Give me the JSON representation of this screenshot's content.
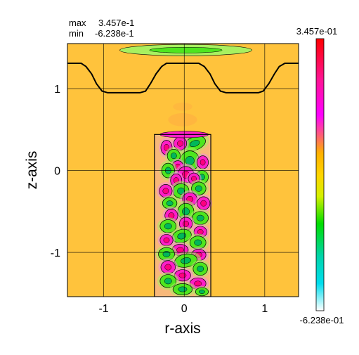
{
  "stats": {
    "max_label": "max",
    "max_value": "3.457e-1",
    "min_label": "min",
    "min_value": "-6.238e-1"
  },
  "colorbar": {
    "top_label": "3.457e-01",
    "bottom_label": "-6.238e-01",
    "stops": [
      {
        "offset": 0.0,
        "color": "#ff0000"
      },
      {
        "offset": 0.15,
        "color": "#ff1493"
      },
      {
        "offset": 0.28,
        "color": "#ff00ff"
      },
      {
        "offset": 0.42,
        "color": "#ffb000"
      },
      {
        "offset": 0.5,
        "color": "#ffd400"
      },
      {
        "offset": 0.58,
        "color": "#d4f000"
      },
      {
        "offset": 0.68,
        "color": "#00dd00"
      },
      {
        "offset": 0.8,
        "color": "#00d4aa"
      },
      {
        "offset": 0.9,
        "color": "#00ddee"
      },
      {
        "offset": 1.0,
        "color": "#ffffff"
      }
    ]
  },
  "colors": {
    "background_field": "#ffc33c",
    "hot": "#ff1ec8",
    "cold": "#4ee61e",
    "light_green": "#a8f060",
    "soft_orange": "#ffb040"
  },
  "chart_data": {
    "type": "heatmap",
    "title": "",
    "xlabel": "r-axis",
    "ylabel": "z-axis",
    "xlim": [
      -1.45,
      1.42
    ],
    "ylim": [
      -1.54,
      1.55
    ],
    "xticks": [
      -1,
      0,
      1
    ],
    "yticks": [
      -1,
      0,
      1
    ],
    "grid": true,
    "value_range": {
      "max": 0.3457,
      "min": -0.6238
    },
    "rectangle": {
      "r_min": -0.37,
      "r_max": 0.33,
      "z_min": -1.54,
      "z_max": 0.44
    },
    "surface_curve": [
      [
        -1.45,
        1.31
      ],
      [
        -1.28,
        1.31
      ],
      [
        -1.22,
        1.27
      ],
      [
        -1.15,
        1.18
      ],
      [
        -1.09,
        1.06
      ],
      [
        -1.02,
        0.97
      ],
      [
        -0.95,
        0.95
      ],
      [
        -0.55,
        0.95
      ],
      [
        -0.48,
        0.97
      ],
      [
        -0.42,
        1.06
      ],
      [
        -0.35,
        1.18
      ],
      [
        -0.28,
        1.27
      ],
      [
        -0.22,
        1.31
      ],
      [
        0.18,
        1.31
      ],
      [
        0.25,
        1.27
      ],
      [
        0.32,
        1.18
      ],
      [
        0.38,
        1.06
      ],
      [
        0.45,
        0.97
      ],
      [
        0.52,
        0.95
      ],
      [
        0.92,
        0.95
      ],
      [
        0.98,
        0.97
      ],
      [
        1.05,
        1.06
      ],
      [
        1.12,
        1.18
      ],
      [
        1.18,
        1.27
      ],
      [
        1.25,
        1.31
      ],
      [
        1.42,
        1.31
      ]
    ],
    "top_blob": {
      "r": 0.02,
      "z": 1.47,
      "rx": 0.82,
      "ry": 0.07
    },
    "rect_top_blob": {
      "r": 0.0,
      "z": 0.44,
      "rx": 0.3,
      "ry": 0.04
    },
    "blobs": [
      {
        "r": 0.13,
        "z": 0.33,
        "sign": -1,
        "w": 0.14,
        "h": 0.08,
        "rot": -20
      },
      {
        "r": -0.05,
        "z": 0.33,
        "sign": 1,
        "w": 0.08,
        "h": 0.08,
        "rot": 0
      },
      {
        "r": -0.22,
        "z": 0.28,
        "sign": 1,
        "w": 0.07,
        "h": 0.09,
        "rot": 0
      },
      {
        "r": 0.07,
        "z": 0.12,
        "sign": -1,
        "w": 0.12,
        "h": 0.12,
        "rot": 0
      },
      {
        "r": -0.13,
        "z": 0.18,
        "sign": -1,
        "w": 0.08,
        "h": 0.08,
        "rot": 0
      },
      {
        "r": 0.23,
        "z": 0.1,
        "sign": 1,
        "w": 0.07,
        "h": 0.08,
        "rot": 0
      },
      {
        "r": -0.08,
        "z": 0.05,
        "sign": 1,
        "w": 0.07,
        "h": 0.07,
        "rot": 0
      },
      {
        "r": 0.02,
        "z": -0.05,
        "sign": 1,
        "w": 0.1,
        "h": 0.1,
        "rot": 0
      },
      {
        "r": -0.2,
        "z": 0.0,
        "sign": -1,
        "w": 0.08,
        "h": 0.09,
        "rot": 0
      },
      {
        "r": 0.22,
        "z": -0.08,
        "sign": -1,
        "w": 0.08,
        "h": 0.08,
        "rot": 0
      },
      {
        "r": 0.12,
        "z": -0.1,
        "sign": 1,
        "w": 0.07,
        "h": 0.07,
        "rot": 0
      },
      {
        "r": -0.1,
        "z": -0.12,
        "sign": 1,
        "w": 0.07,
        "h": 0.08,
        "rot": 0
      },
      {
        "r": -0.04,
        "z": -0.25,
        "sign": -1,
        "w": 0.1,
        "h": 0.09,
        "rot": 0
      },
      {
        "r": 0.18,
        "z": -0.22,
        "sign": -1,
        "w": 0.09,
        "h": 0.08,
        "rot": 0
      },
      {
        "r": -0.23,
        "z": -0.25,
        "sign": 1,
        "w": 0.08,
        "h": 0.08,
        "rot": 0
      },
      {
        "r": 0.07,
        "z": -0.35,
        "sign": 1,
        "w": 0.09,
        "h": 0.08,
        "rot": 0
      },
      {
        "r": -0.18,
        "z": -0.4,
        "sign": -1,
        "w": 0.09,
        "h": 0.07,
        "rot": 0
      },
      {
        "r": 0.24,
        "z": -0.4,
        "sign": 1,
        "w": 0.08,
        "h": 0.08,
        "rot": 0
      },
      {
        "r": 0.02,
        "z": -0.5,
        "sign": -1,
        "w": 0.1,
        "h": 0.1,
        "rot": 0
      },
      {
        "r": -0.16,
        "z": -0.55,
        "sign": 1,
        "w": 0.08,
        "h": 0.08,
        "rot": 0
      },
      {
        "r": 0.2,
        "z": -0.58,
        "sign": -1,
        "w": 0.1,
        "h": 0.08,
        "rot": 0
      },
      {
        "r": 0.02,
        "z": -0.65,
        "sign": 1,
        "w": 0.08,
        "h": 0.08,
        "rot": 0
      },
      {
        "r": -0.2,
        "z": -0.68,
        "sign": -1,
        "w": 0.1,
        "h": 0.08,
        "rot": 0
      },
      {
        "r": 0.2,
        "z": -0.75,
        "sign": 1,
        "w": 0.08,
        "h": 0.07,
        "rot": 0
      },
      {
        "r": -0.03,
        "z": -0.8,
        "sign": -1,
        "w": 0.12,
        "h": 0.08,
        "rot": -15
      },
      {
        "r": -0.22,
        "z": -0.85,
        "sign": 1,
        "w": 0.08,
        "h": 0.07,
        "rot": 0
      },
      {
        "r": 0.17,
        "z": -0.88,
        "sign": -1,
        "w": 0.1,
        "h": 0.08,
        "rot": 0
      },
      {
        "r": -0.05,
        "z": -0.97,
        "sign": 1,
        "w": 0.1,
        "h": 0.07,
        "rot": 0
      },
      {
        "r": -0.22,
        "z": -1.02,
        "sign": -1,
        "w": 0.1,
        "h": 0.08,
        "rot": 0
      },
      {
        "r": 0.18,
        "z": -1.03,
        "sign": 1,
        "w": 0.09,
        "h": 0.07,
        "rot": 0
      },
      {
        "r": 0.02,
        "z": -1.1,
        "sign": -1,
        "w": 0.14,
        "h": 0.08,
        "rot": -10
      },
      {
        "r": -0.2,
        "z": -1.18,
        "sign": 1,
        "w": 0.09,
        "h": 0.08,
        "rot": 0
      },
      {
        "r": 0.2,
        "z": -1.2,
        "sign": -1,
        "w": 0.09,
        "h": 0.08,
        "rot": 0
      },
      {
        "r": -0.02,
        "z": -1.28,
        "sign": 1,
        "w": 0.1,
        "h": 0.07,
        "rot": 0
      },
      {
        "r": -0.2,
        "z": -1.35,
        "sign": -1,
        "w": 0.1,
        "h": 0.08,
        "rot": 0
      },
      {
        "r": 0.17,
        "z": -1.38,
        "sign": 1,
        "w": 0.1,
        "h": 0.07,
        "rot": 0
      },
      {
        "r": -0.02,
        "z": -1.45,
        "sign": -1,
        "w": 0.12,
        "h": 0.07,
        "rot": 0
      },
      {
        "r": 0.22,
        "z": -1.48,
        "sign": -1,
        "w": 0.08,
        "h": 0.05,
        "rot": 0
      }
    ]
  }
}
